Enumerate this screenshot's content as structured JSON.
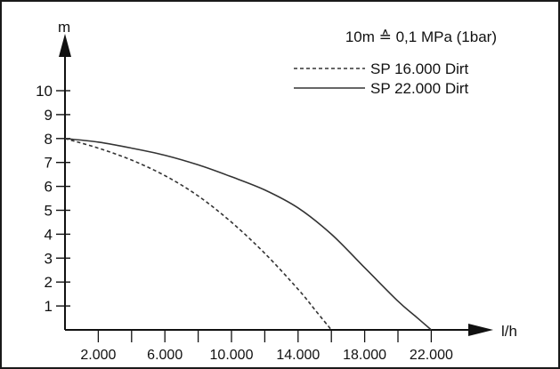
{
  "chart_data": {
    "type": "line",
    "title": "",
    "note": "10m ≙ 0,1 MPa (1bar)",
    "xlabel": "l/h",
    "ylabel": "m",
    "xlim": [
      0,
      24000
    ],
    "ylim": [
      0,
      11
    ],
    "x_ticks": [
      2000,
      4000,
      6000,
      8000,
      10000,
      12000,
      14000,
      16000,
      18000,
      20000,
      22000
    ],
    "x_tick_labels": [
      "2.000",
      "",
      "6.000",
      "",
      "10.000",
      "",
      "14.000",
      "",
      "18.000",
      "",
      "22.000"
    ],
    "y_ticks": [
      1,
      2,
      3,
      4,
      5,
      6,
      7,
      8,
      9,
      10
    ],
    "y_tick_labels": [
      "1",
      "2",
      "3",
      "4",
      "5",
      "6",
      "7",
      "8",
      "9",
      "10"
    ],
    "grid": false,
    "legend_position": "top-right",
    "series": [
      {
        "name": "SP 16.000 Dirt",
        "style": "dashed",
        "color": "#333333",
        "x": [
          0,
          2000,
          4000,
          6000,
          8000,
          10000,
          12000,
          14000,
          15000,
          16000
        ],
        "y": [
          8.0,
          7.6,
          7.1,
          6.45,
          5.6,
          4.5,
          3.2,
          1.7,
          0.85,
          0.0
        ]
      },
      {
        "name": "SP 22.000 Dirt",
        "style": "solid",
        "color": "#333333",
        "x": [
          0,
          2000,
          4000,
          6000,
          8000,
          10000,
          12000,
          14000,
          16000,
          18000,
          20000,
          21000,
          22000
        ],
        "y": [
          8.0,
          7.85,
          7.6,
          7.3,
          6.9,
          6.4,
          5.85,
          5.1,
          4.0,
          2.6,
          1.2,
          0.6,
          0.0
        ]
      }
    ]
  }
}
